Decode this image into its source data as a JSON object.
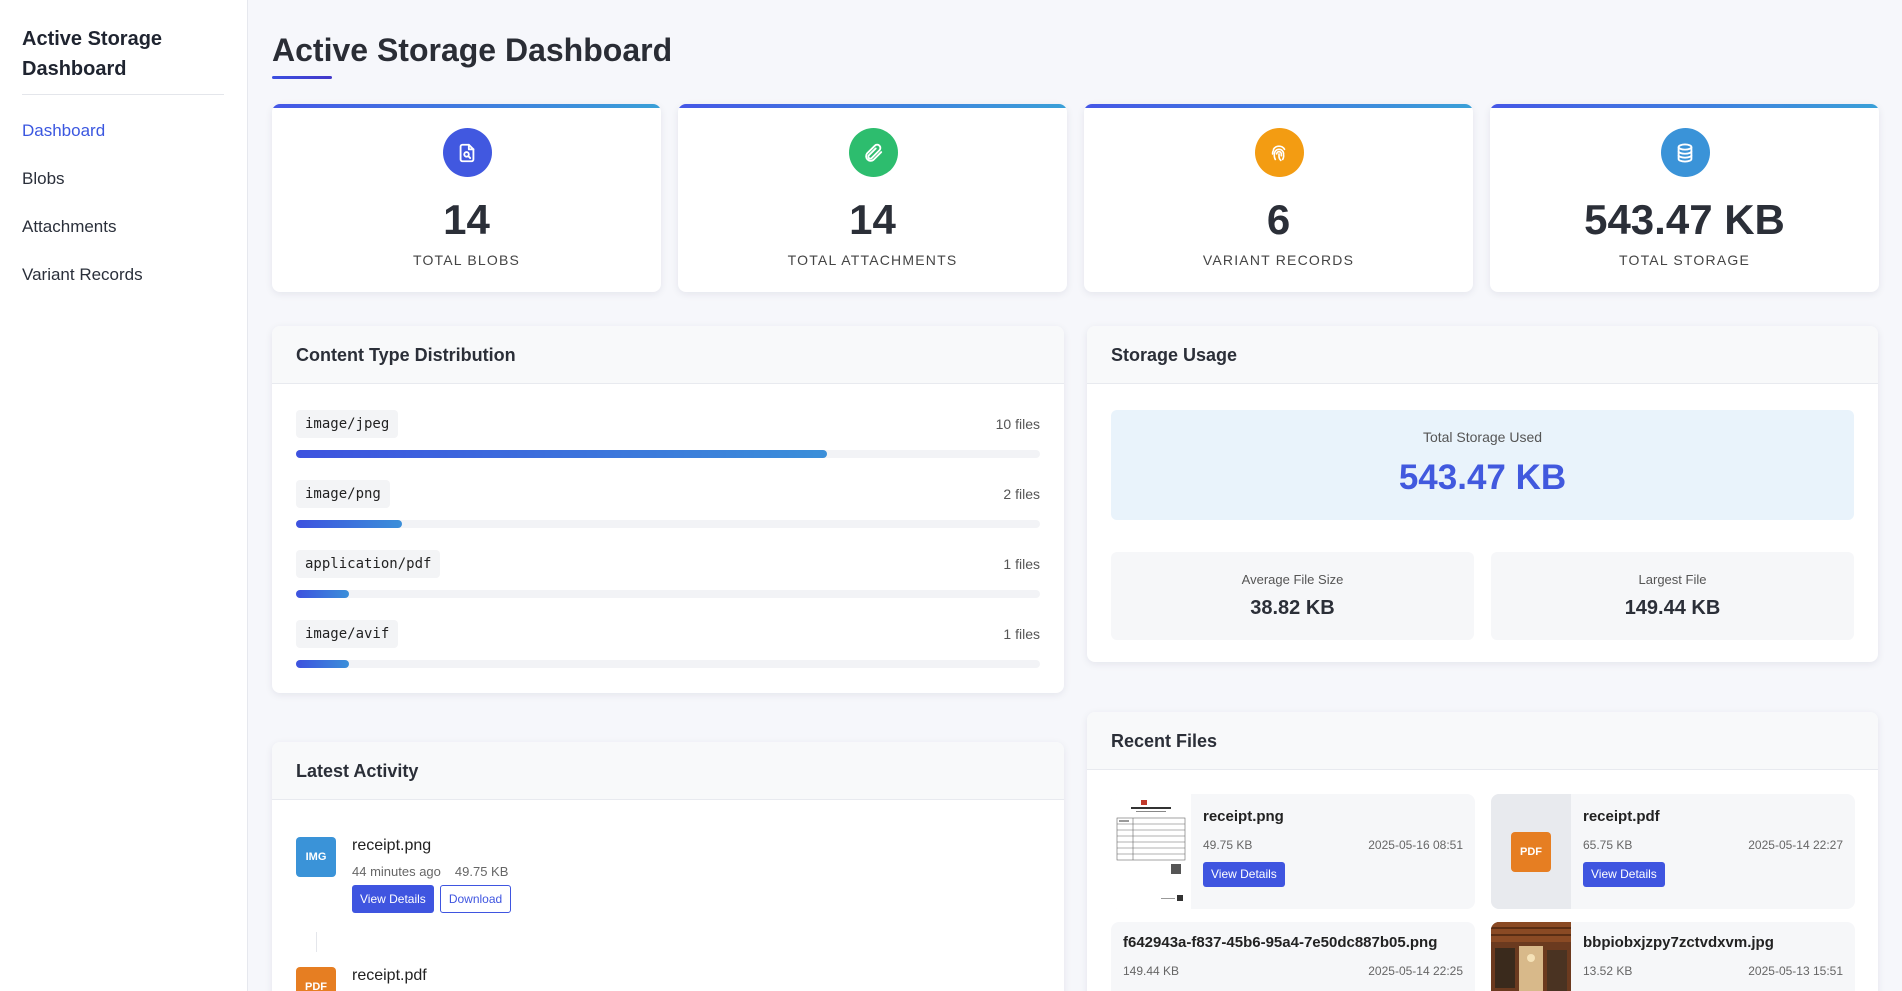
{
  "sidebar": {
    "title": "Active Storage Dashboard",
    "items": [
      {
        "label": "Dashboard",
        "active": true
      },
      {
        "label": "Blobs"
      },
      {
        "label": "Attachments"
      },
      {
        "label": "Variant Records"
      }
    ]
  },
  "page": {
    "title": "Active Storage Dashboard"
  },
  "stats": [
    {
      "value": "14",
      "label": "TOTAL BLOBS",
      "icon": "file-search-icon",
      "color": "#4158e0"
    },
    {
      "value": "14",
      "label": "TOTAL ATTACHMENTS",
      "icon": "paperclip-icon",
      "color": "#2dbd6e"
    },
    {
      "value": "6",
      "label": "VARIANT RECORDS",
      "icon": "fingerprint-icon",
      "color": "#f39c12"
    },
    {
      "value": "543.47 KB",
      "label": "TOTAL STORAGE",
      "icon": "database-icon",
      "color": "#3a93d8"
    }
  ],
  "content_types": {
    "title": "Content Type Distribution",
    "items": [
      {
        "type": "image/jpeg",
        "count": "10 files",
        "fraction": 0.714
      },
      {
        "type": "image/png",
        "count": "2 files",
        "fraction": 0.143
      },
      {
        "type": "application/pdf",
        "count": "1 files",
        "fraction": 0.071
      },
      {
        "type": "image/avif",
        "count": "1 files",
        "fraction": 0.071
      }
    ]
  },
  "storage": {
    "title": "Storage Usage",
    "total_label": "Total Storage Used",
    "total_value": "543.47 KB",
    "average_label": "Average File Size",
    "average_value": "38.82 KB",
    "largest_label": "Largest File",
    "largest_value": "149.44 KB"
  },
  "activity": {
    "title": "Latest Activity",
    "items": [
      {
        "badge": "IMG",
        "badge_color": "#3a93d8",
        "name": "receipt.png",
        "time": "44 minutes ago",
        "size": "49.75 KB",
        "view": "View Details",
        "download": "Download"
      },
      {
        "badge": "PDF",
        "badge_color": "#e67e22",
        "name": "receipt.pdf"
      }
    ]
  },
  "recent": {
    "title": "Recent Files",
    "items": [
      {
        "name": "receipt.png",
        "size": "49.75 KB",
        "date": "2025-05-16 08:51",
        "button": "View Details",
        "thumb": "receipt-image"
      },
      {
        "name": "receipt.pdf",
        "size": "65.75 KB",
        "date": "2025-05-14 22:27",
        "button": "View Details",
        "thumb": "PDF"
      },
      {
        "name": "f642943a-f837-45b6-95a4-7e50dc887b05.png",
        "size": "149.44 KB",
        "date": "2025-05-14 22:25"
      },
      {
        "name": "bbpiobxjzpy7zctvdxvm.jpg",
        "size": "13.52 KB",
        "date": "2025-05-13 15:51",
        "thumb": "restaurant-photo"
      }
    ]
  }
}
